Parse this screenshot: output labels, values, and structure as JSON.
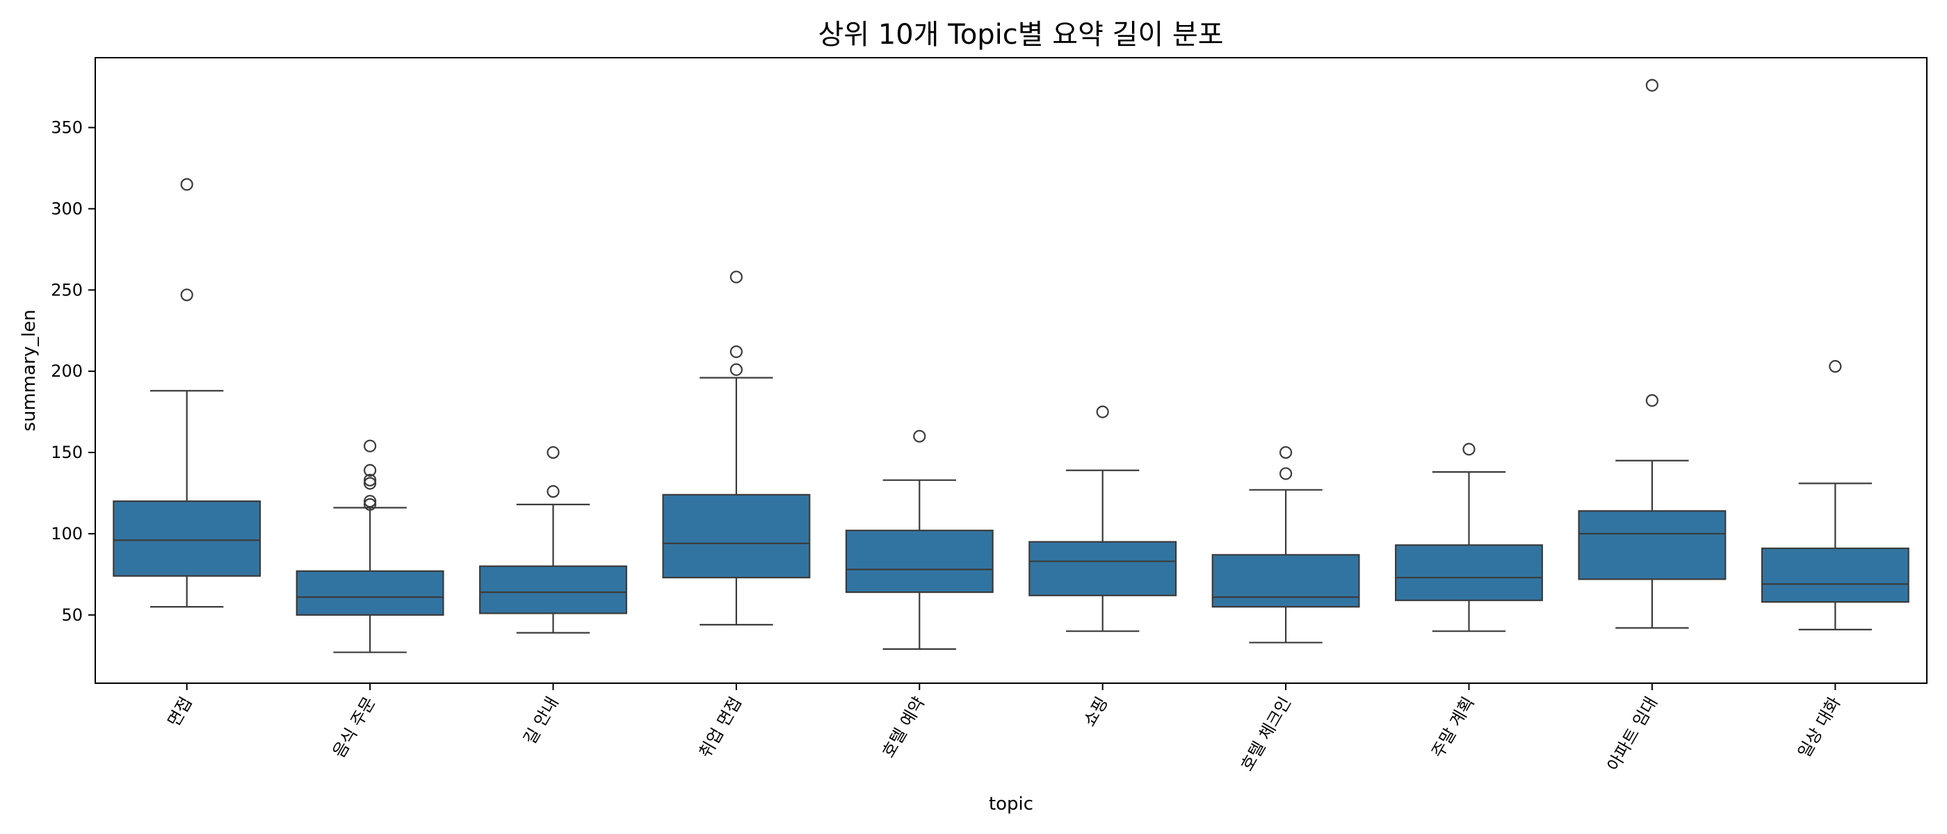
{
  "chart_data": {
    "type": "box",
    "title": "상위 10개 Topic별 요약 길이 분포",
    "xlabel": "topic",
    "ylabel": "summary_len",
    "ylim": [
      8,
      393
    ],
    "yticks": [
      50,
      100,
      150,
      200,
      250,
      300,
      350
    ],
    "grid": false,
    "legend": "none",
    "box_color": "#3274a1",
    "line_color": "#3b3b3b",
    "categories": [
      "면접",
      "음식 주문",
      "길 안내",
      "취업 면접",
      "호텔 예약",
      "쇼핑",
      "호텔 체크인",
      "주말 계획",
      "아파트 임대",
      "일상 대화"
    ],
    "boxes": [
      {
        "whisker_low": 55,
        "q1": 74,
        "median": 96,
        "q3": 120,
        "whisker_high": 188,
        "outliers": [
          247,
          315
        ]
      },
      {
        "whisker_low": 27,
        "q1": 50,
        "median": 61,
        "q3": 77,
        "whisker_high": 116,
        "outliers": [
          118,
          120,
          131,
          133,
          139,
          154
        ]
      },
      {
        "whisker_low": 39,
        "q1": 51,
        "median": 64,
        "q3": 80,
        "whisker_high": 118,
        "outliers": [
          126,
          150
        ]
      },
      {
        "whisker_low": 44,
        "q1": 73,
        "median": 94,
        "q3": 124,
        "whisker_high": 196,
        "outliers": [
          201,
          212,
          258
        ]
      },
      {
        "whisker_low": 29,
        "q1": 64,
        "median": 78,
        "q3": 102,
        "whisker_high": 133,
        "outliers": [
          160
        ]
      },
      {
        "whisker_low": 40,
        "q1": 62,
        "median": 83,
        "q3": 95,
        "whisker_high": 139,
        "outliers": [
          175
        ]
      },
      {
        "whisker_low": 33,
        "q1": 55,
        "median": 61,
        "q3": 87,
        "whisker_high": 127,
        "outliers": [
          137,
          150
        ]
      },
      {
        "whisker_low": 40,
        "q1": 59,
        "median": 73,
        "q3": 93,
        "whisker_high": 138,
        "outliers": [
          152
        ]
      },
      {
        "whisker_low": 42,
        "q1": 72,
        "median": 100,
        "q3": 114,
        "whisker_high": 145,
        "outliers": [
          182,
          376
        ]
      },
      {
        "whisker_low": 41,
        "q1": 58,
        "median": 69,
        "q3": 91,
        "whisker_high": 131,
        "outliers": [
          203
        ]
      }
    ]
  }
}
